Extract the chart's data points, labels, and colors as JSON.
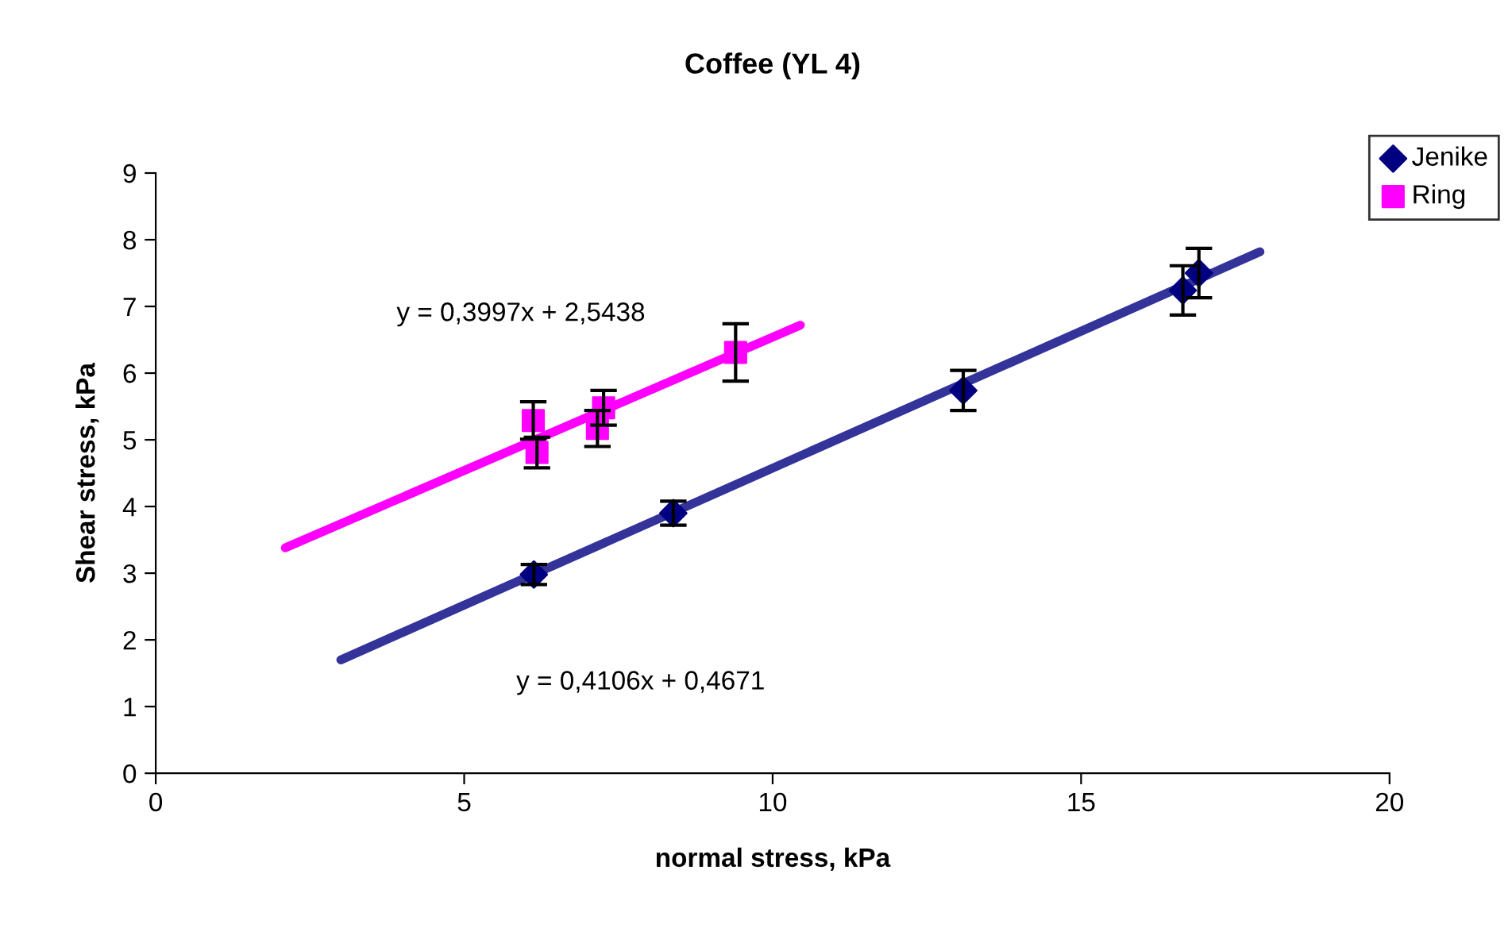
{
  "chart_data": {
    "type": "scatter",
    "title": "Coffee (YL 4)",
    "xlabel": "normal stress, kPa",
    "ylabel": "Shear stress, kPa",
    "xlim": [
      0,
      20
    ],
    "xticks": [
      0,
      5,
      10,
      15,
      20
    ],
    "ylim": [
      0,
      9
    ],
    "yticks": [
      0,
      1,
      2,
      3,
      4,
      5,
      6,
      7,
      8,
      9
    ],
    "grid": false,
    "legend": "top right",
    "series": [
      {
        "name": "Jenike",
        "color": "#000080",
        "marker": "diamond",
        "x": [
          6.13,
          8.39,
          13.09,
          16.65,
          16.91
        ],
        "values": [
          2.98,
          3.9,
          5.74,
          7.24,
          7.5
        ],
        "errors": [
          0.15,
          0.18,
          0.3,
          0.37,
          0.37
        ]
      },
      {
        "name": "Ring",
        "color": "#ff00ff",
        "marker": "square",
        "x": [
          6.12,
          6.18,
          7.16,
          7.26,
          9.4
        ],
        "values": [
          5.29,
          4.81,
          5.17,
          5.48,
          6.31
        ],
        "errors": [
          0.28,
          0.23,
          0.27,
          0.26,
          0.43
        ]
      },
      {
        "type": "line",
        "color": "#333399",
        "marker": "none",
        "x": [
          3.0,
          17.9
        ],
        "values": [
          1.7,
          7.82
        ]
      },
      {
        "type": "line",
        "color": "#ff00ff",
        "marker": "none",
        "x": [
          2.1,
          10.45
        ],
        "values": [
          3.38,
          6.72
        ]
      }
    ],
    "annotations": [
      "y = 0,3997x + 2,5438",
      "y = 0,4106x + 0,4671"
    ]
  }
}
